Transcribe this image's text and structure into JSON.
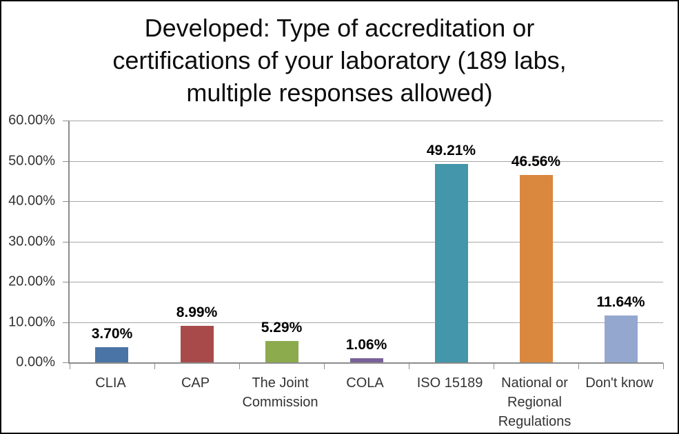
{
  "title": "Developed: Type of accreditation or certifications of your laboratory (189 labs, multiple responses allowed)",
  "chart_data": {
    "type": "bar",
    "title": "Developed: Type of accreditation or certifications of your laboratory (189 labs, multiple responses allowed)",
    "categories": [
      "CLIA",
      "CAP",
      "The Joint Commission",
      "COLA",
      "ISO 15189",
      "National or Regional Regulations",
      "Don't know"
    ],
    "values": [
      3.7,
      8.99,
      5.29,
      1.06,
      49.21,
      46.56,
      11.64
    ],
    "value_labels": [
      "3.70%",
      "8.99%",
      "5.29%",
      "1.06%",
      "49.21%",
      "46.56%",
      "11.64%"
    ],
    "bar_colors": [
      "#4a74a6",
      "#a94a4a",
      "#8cab4c",
      "#7a6199",
      "#4496aa",
      "#d9883e",
      "#93a7cf"
    ],
    "xlabel": "",
    "ylabel": "",
    "ylim": [
      0,
      60
    ],
    "yticks": [
      {
        "label": "60.00%",
        "value": 60
      },
      {
        "label": "50.00%",
        "value": 50
      },
      {
        "label": "40.00%",
        "value": 40
      },
      {
        "label": "30.00%",
        "value": 30
      },
      {
        "label": "20.00%",
        "value": 20
      },
      {
        "label": "10.00%",
        "value": 10
      },
      {
        "label": "0.00%",
        "value": 0
      }
    ],
    "grid": true,
    "legend_position": "none"
  },
  "colors": {
    "gridline": "#a6a6a6",
    "axis": "#8c8c8c",
    "title_text": "#0d0d0d",
    "tick_text": "#333333",
    "data_label_text": "#000000",
    "background": "#ffffff",
    "frame_border": "#0a0a0a"
  }
}
